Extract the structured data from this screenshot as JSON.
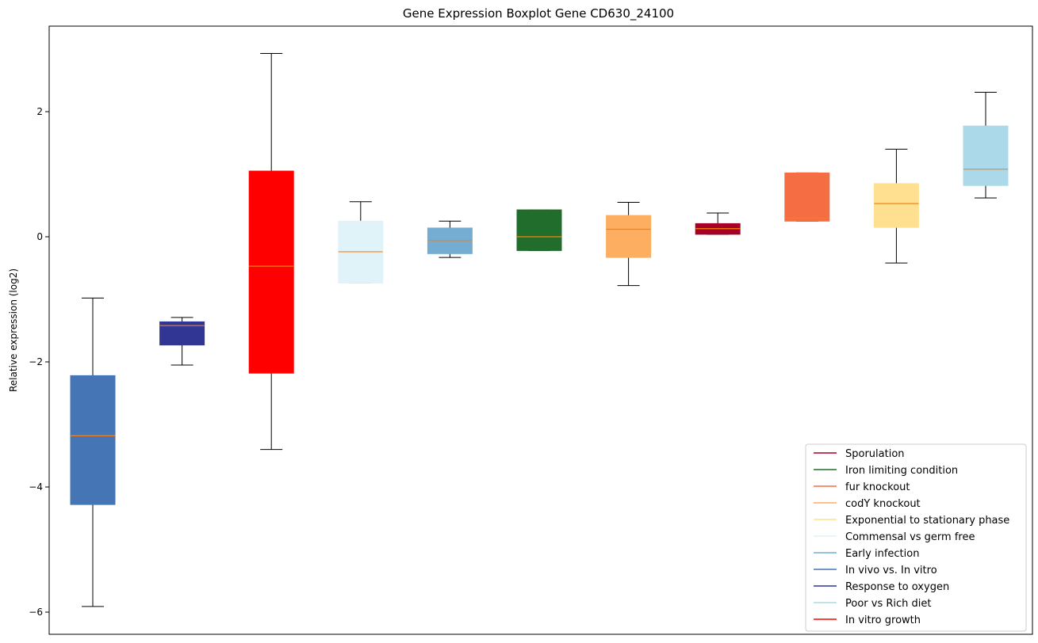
{
  "chart_data": {
    "type": "boxplot",
    "title": "Gene Expression Boxplot Gene CD630_24100",
    "ylabel": "Relative expression (log2)",
    "xlabel": "",
    "ylim": [
      -6.3,
      3.4
    ],
    "yticks": [
      2,
      0,
      -2,
      -4,
      -6
    ],
    "ytick_labels": [
      "2",
      "0",
      "−2",
      "−4",
      "−6"
    ],
    "grid": false,
    "legend_position": "lower-right",
    "median_color": "#ff7f0e",
    "boxes": [
      {
        "color": "#4575b4",
        "whisker_low": -5.91,
        "q1": -4.28,
        "median": -3.18,
        "q3": -2.22,
        "whisker_high": -0.98
      },
      {
        "color": "#313695",
        "whisker_low": -2.05,
        "q1": -1.73,
        "median": -1.42,
        "q3": -1.36,
        "whisker_high": -1.29
      },
      {
        "color": "#ff0000",
        "whisker_low": -3.4,
        "q1": -2.18,
        "median": -0.47,
        "q3": 1.05,
        "whisker_high": 2.93
      },
      {
        "color": "#e0f3f8",
        "whisker_low": -0.74,
        "q1": -0.74,
        "median": -0.24,
        "q3": 0.25,
        "whisker_high": 0.56
      },
      {
        "color": "#74add1",
        "whisker_low": -0.33,
        "q1": -0.27,
        "median": -0.06,
        "q3": 0.14,
        "whisker_high": 0.25
      },
      {
        "color": "#216d2c",
        "whisker_low": -0.22,
        "q1": -0.22,
        "median": 0.0,
        "q3": 0.43,
        "whisker_high": 0.43
      },
      {
        "color": "#fdae61",
        "whisker_low": -0.78,
        "q1": -0.33,
        "median": 0.12,
        "q3": 0.34,
        "whisker_high": 0.55
      },
      {
        "color": "#a50026",
        "whisker_low": 0.04,
        "q1": 0.04,
        "median": 0.13,
        "q3": 0.21,
        "whisker_high": 0.38
      },
      {
        "color": "#f46d43",
        "whisker_low": 0.25,
        "q1": 0.25,
        "median": 0.3,
        "q3": 1.02,
        "whisker_high": 1.02
      },
      {
        "color": "#fee090",
        "whisker_low": -0.42,
        "q1": 0.15,
        "median": 0.53,
        "q3": 0.85,
        "whisker_high": 1.4
      },
      {
        "color": "#abd9e9",
        "whisker_low": 0.62,
        "q1": 0.82,
        "median": 1.08,
        "q3": 1.77,
        "whisker_high": 2.31
      }
    ],
    "legend": [
      {
        "label": "Sporulation",
        "color": "#a50026"
      },
      {
        "label": "Iron limiting condition",
        "color": "#216d2c"
      },
      {
        "label": "fur knockout",
        "color": "#f46d43"
      },
      {
        "label": "codY knockout",
        "color": "#fdae61"
      },
      {
        "label": "Exponential to stationary phase",
        "color": "#fee090"
      },
      {
        "label": "Commensal vs germ free",
        "color": "#e0f3f8"
      },
      {
        "label": "Early infection",
        "color": "#74add1"
      },
      {
        "label": "In vivo vs. In vitro",
        "color": "#4575b4"
      },
      {
        "label": "Response to oxygen",
        "color": "#313695"
      },
      {
        "label": "Poor vs Rich diet",
        "color": "#abd9e9"
      },
      {
        "label": "In vitro growth",
        "color": "#ff0000"
      }
    ]
  }
}
